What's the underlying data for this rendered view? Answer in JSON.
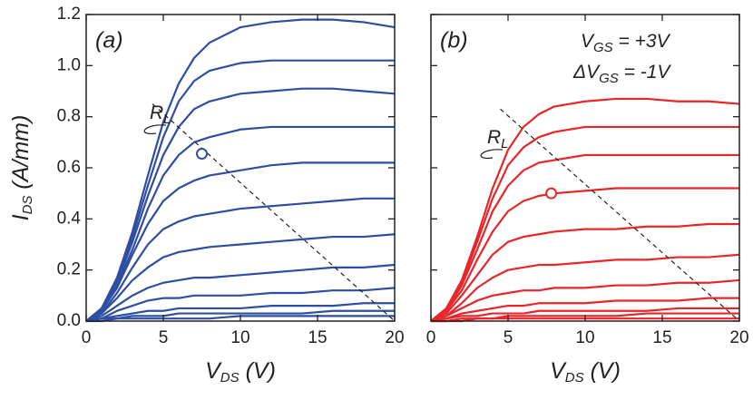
{
  "chart_data": [
    {
      "type": "line",
      "panel_label": "(a)",
      "ylabel": {
        "main": "I",
        "sub": "DS",
        "rest": " (A/mm)"
      },
      "xlabel": {
        "main": "V",
        "sub": "DS",
        "rest": " (V)"
      },
      "xlim": [
        0,
        20
      ],
      "xticks": [
        0,
        5,
        10,
        15,
        20
      ],
      "ylim": [
        0,
        1.2
      ],
      "yticks": [
        {
          "value": 0,
          "label": "0.0"
        },
        0.2,
        0.4,
        0.6,
        0.8,
        {
          "value": 1,
          "label": "1.0"
        },
        1.2
      ],
      "ytick_labels": true,
      "x": [
        0,
        1,
        2,
        3,
        4,
        5,
        6,
        7,
        8,
        10,
        12,
        14,
        16,
        18,
        20
      ],
      "series": [
        {
          "color": "#2f4ea2",
          "values": [
            0,
            0.05,
            0.17,
            0.35,
            0.57,
            0.78,
            0.93,
            1.03,
            1.09,
            1.15,
            1.17,
            1.18,
            1.18,
            1.17,
            1.15
          ]
        },
        {
          "color": "#2f4ea2",
          "values": [
            0,
            0.05,
            0.16,
            0.33,
            0.53,
            0.72,
            0.86,
            0.94,
            0.98,
            1.01,
            1.02,
            1.02,
            1.02,
            1.02,
            1.02
          ]
        },
        {
          "color": "#2f4ea2",
          "values": [
            0,
            0.04,
            0.15,
            0.31,
            0.49,
            0.65,
            0.76,
            0.83,
            0.86,
            0.89,
            0.9,
            0.91,
            0.91,
            0.9,
            0.89
          ]
        },
        {
          "color": "#2f4ea2",
          "values": [
            0,
            0.04,
            0.14,
            0.28,
            0.44,
            0.57,
            0.65,
            0.7,
            0.72,
            0.75,
            0.76,
            0.76,
            0.76,
            0.76,
            0.76
          ]
        },
        {
          "color": "#2f4ea2",
          "values": [
            0,
            0.04,
            0.13,
            0.26,
            0.38,
            0.47,
            0.52,
            0.55,
            0.57,
            0.59,
            0.61,
            0.62,
            0.62,
            0.62,
            0.62
          ]
        },
        {
          "color": "#2f4ea2",
          "values": [
            0,
            0.03,
            0.11,
            0.21,
            0.3,
            0.36,
            0.39,
            0.41,
            0.42,
            0.44,
            0.45,
            0.46,
            0.47,
            0.48,
            0.48
          ]
        },
        {
          "color": "#2f4ea2",
          "values": [
            0,
            0.03,
            0.09,
            0.16,
            0.21,
            0.25,
            0.27,
            0.28,
            0.29,
            0.3,
            0.31,
            0.32,
            0.33,
            0.33,
            0.34
          ]
        },
        {
          "color": "#2f4ea2",
          "values": [
            0,
            0.02,
            0.06,
            0.1,
            0.13,
            0.15,
            0.16,
            0.17,
            0.17,
            0.18,
            0.19,
            0.2,
            0.21,
            0.21,
            0.22
          ]
        },
        {
          "color": "#2f4ea2",
          "values": [
            0,
            0.01,
            0.04,
            0.06,
            0.08,
            0.09,
            0.09,
            0.1,
            0.1,
            0.1,
            0.11,
            0.11,
            0.12,
            0.12,
            0.13
          ]
        },
        {
          "color": "#2f4ea2",
          "values": [
            0,
            0.01,
            0.02,
            0.03,
            0.04,
            0.04,
            0.05,
            0.05,
            0.05,
            0.05,
            0.06,
            0.06,
            0.06,
            0.07,
            0.07
          ]
        },
        {
          "color": "#2f4ea2",
          "values": [
            0,
            0.01,
            0.01,
            0.02,
            0.02,
            0.02,
            0.03,
            0.03,
            0.03,
            0.03,
            0.03,
            0.03,
            0.04,
            0.04,
            0.04
          ]
        },
        {
          "color": "#2f4ea2",
          "values": [
            0,
            0,
            0.01,
            0.01,
            0.01,
            0.01,
            0.01,
            0.01,
            0.01,
            0.02,
            0.02,
            0.02,
            0.02,
            0.02,
            0.02
          ]
        }
      ],
      "load_line": {
        "x": [
          4.3,
          20
        ],
        "y": [
          0.85,
          0
        ]
      },
      "operating_point": {
        "x": 7.5,
        "y": 0.655
      },
      "load_label": {
        "main": "R",
        "sub": "L"
      }
    },
    {
      "type": "line",
      "panel_label": "(b)",
      "xlabel": {
        "main": "V",
        "sub": "DS",
        "rest": " (V)"
      },
      "xlim": [
        0,
        20
      ],
      "xticks": [
        0,
        5,
        10,
        15,
        20
      ],
      "ylim": [
        0,
        1.2
      ],
      "yticks": [
        0,
        0.2,
        0.4,
        0.6,
        0.8,
        1,
        1.2
      ],
      "ytick_labels": false,
      "x": [
        0,
        1,
        2,
        3,
        4,
        5,
        6,
        7,
        8,
        10,
        12,
        14,
        16,
        18,
        20
      ],
      "series": [
        {
          "color": "#e8262a",
          "values": [
            0,
            0.05,
            0.16,
            0.33,
            0.52,
            0.67,
            0.76,
            0.81,
            0.84,
            0.86,
            0.87,
            0.87,
            0.86,
            0.86,
            0.85
          ]
        },
        {
          "color": "#e8262a",
          "values": [
            0,
            0.05,
            0.15,
            0.31,
            0.48,
            0.61,
            0.68,
            0.72,
            0.74,
            0.76,
            0.76,
            0.76,
            0.76,
            0.76,
            0.76
          ]
        },
        {
          "color": "#e8262a",
          "values": [
            0,
            0.04,
            0.14,
            0.28,
            0.43,
            0.53,
            0.59,
            0.62,
            0.63,
            0.65,
            0.65,
            0.65,
            0.65,
            0.65,
            0.65
          ]
        },
        {
          "color": "#e8262a",
          "values": [
            0,
            0.04,
            0.12,
            0.24,
            0.35,
            0.43,
            0.47,
            0.49,
            0.5,
            0.51,
            0.52,
            0.52,
            0.52,
            0.52,
            0.52
          ]
        },
        {
          "color": "#e8262a",
          "values": [
            0,
            0.03,
            0.1,
            0.18,
            0.26,
            0.31,
            0.33,
            0.34,
            0.35,
            0.36,
            0.36,
            0.37,
            0.37,
            0.38,
            0.38
          ]
        },
        {
          "color": "#e8262a",
          "values": [
            0,
            0.02,
            0.07,
            0.13,
            0.17,
            0.2,
            0.21,
            0.22,
            0.22,
            0.23,
            0.24,
            0.24,
            0.25,
            0.25,
            0.26
          ]
        },
        {
          "color": "#e8262a",
          "values": [
            0,
            0.02,
            0.05,
            0.08,
            0.1,
            0.11,
            0.12,
            0.12,
            0.13,
            0.13,
            0.14,
            0.14,
            0.15,
            0.15,
            0.16
          ]
        },
        {
          "color": "#e8262a",
          "values": [
            0,
            0.01,
            0.03,
            0.04,
            0.05,
            0.06,
            0.06,
            0.07,
            0.07,
            0.07,
            0.08,
            0.08,
            0.08,
            0.09,
            0.09
          ]
        },
        {
          "color": "#e8262a",
          "values": [
            0,
            0.01,
            0.02,
            0.02,
            0.03,
            0.03,
            0.03,
            0.04,
            0.04,
            0.04,
            0.04,
            0.04,
            0.05,
            0.05,
            0.05
          ]
        },
        {
          "color": "#e8262a",
          "values": [
            0,
            0,
            0.01,
            0.01,
            0.01,
            0.02,
            0.02,
            0.02,
            0.02,
            0.02,
            0.02,
            0.03,
            0.03,
            0.03,
            0.03
          ]
        },
        {
          "color": "#e8262a",
          "values": [
            0,
            0,
            0,
            0.01,
            0.01,
            0.01,
            0.01,
            0.01,
            0.01,
            0.01,
            0.01,
            0.01,
            0.01,
            0.01,
            0.01
          ]
        }
      ],
      "load_line": {
        "x": [
          4.5,
          20
        ],
        "y": [
          0.83,
          0
        ]
      },
      "operating_point": {
        "x": 7.8,
        "y": 0.5
      },
      "load_label": {
        "main": "R",
        "sub": "L"
      },
      "annotations": [
        {
          "main": "V",
          "sub": "GS",
          "rest": " = +3V"
        },
        {
          "main": "ΔV",
          "sub": "GS",
          "rest": " = -1V"
        }
      ]
    }
  ]
}
